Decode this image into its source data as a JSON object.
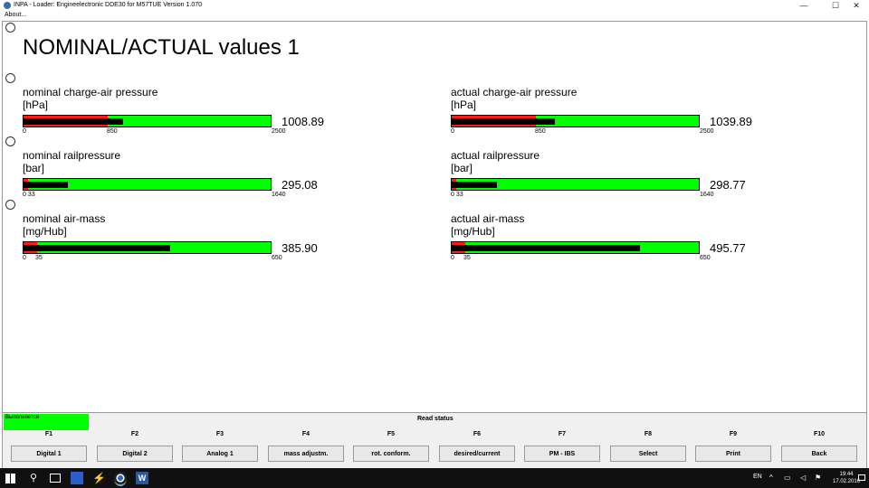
{
  "window": {
    "title": "INPA - Loader:  Engineelectronic DDE30 for M57TUE Version 1.070",
    "minimize": "—",
    "maximize": "☐",
    "close": "✕"
  },
  "menu": {
    "about": "About..."
  },
  "heading": "NOMINAL/ACTUAL values 1",
  "gauges": [
    {
      "label": "nominal charge-air pressure",
      "unit": "[hPa]",
      "value": "1008.89",
      "min": 0,
      "max": 2500,
      "threshold": 850,
      "current": 1008.89,
      "ticks": [
        "0",
        "850",
        "2500"
      ]
    },
    {
      "label": "actual charge-air pressure",
      "unit": "[hPa]",
      "value": "1039.89",
      "min": 0,
      "max": 2500,
      "threshold": 850,
      "current": 1039.89,
      "ticks": [
        "0",
        "850",
        "2500"
      ]
    },
    {
      "label": "nominal railpressure",
      "unit": "[bar]",
      "value": "295.08",
      "min": 0,
      "max": 1640,
      "threshold": 33,
      "current": 295.08,
      "ticks": [
        "0 33",
        "1640"
      ]
    },
    {
      "label": "actual railpressure",
      "unit": "[bar]",
      "value": "298.77",
      "min": 0,
      "max": 1640,
      "threshold": 33,
      "current": 298.77,
      "ticks": [
        "0 33",
        "1640"
      ]
    },
    {
      "label": "nominal air-mass",
      "unit": "[mg/Hub]",
      "value": "385.90",
      "min": 0,
      "max": 650,
      "threshold": 35,
      "current": 385.9,
      "ticks": [
        "0",
        "35",
        "650"
      ]
    },
    {
      "label": "actual air-mass",
      "unit": "[mg/Hub]",
      "value": "495.77",
      "min": 0,
      "max": 650,
      "threshold": 35,
      "current": 495.77,
      "ticks": [
        "0",
        "35",
        "650"
      ]
    }
  ],
  "status": {
    "running": "Выполняется",
    "read_status": "Read status"
  },
  "fkeys": [
    "F1",
    "F2",
    "F3",
    "F4",
    "F5",
    "F6",
    "F7",
    "F8",
    "F9",
    "F10"
  ],
  "buttons": [
    "Digital 1",
    "Digital 2",
    "Analog 1",
    "mass adjustm.",
    "rot. conform.",
    "desired/current",
    "PM - IBS",
    "Select",
    "Print",
    "Back"
  ],
  "taskbar": {
    "search_glyph": "⚲",
    "bolt_glyph": "⚡",
    "word_glyph": "W",
    "lang": "EN",
    "tray_up": "^",
    "tray_net": "▭",
    "tray_vol": "◁",
    "time": "19:44",
    "date": "17.02.2016"
  },
  "colors": {
    "bar_fill": "#00ff00",
    "bar_threshold": "#ff1a1a",
    "bar_value": "#000000",
    "status_running": "#00ff00"
  }
}
